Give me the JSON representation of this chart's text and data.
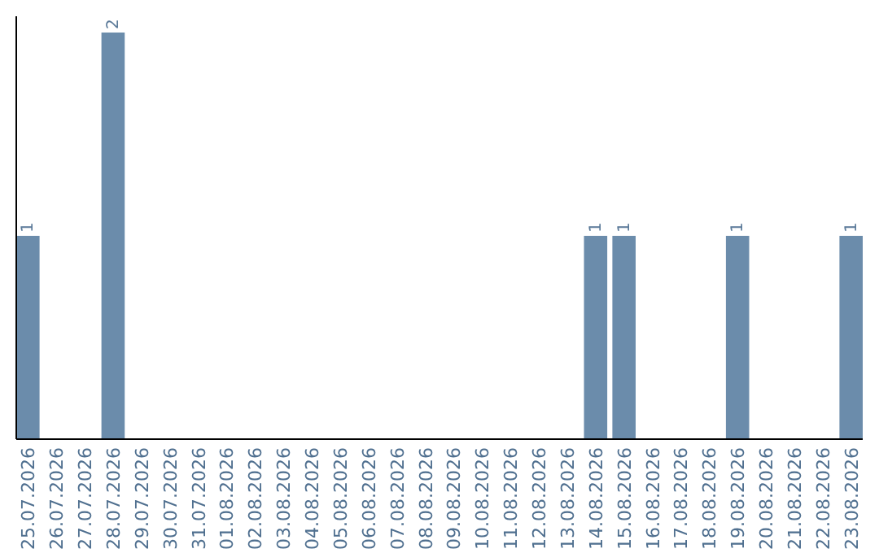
{
  "chart_data": {
    "type": "bar",
    "categories": [
      "25.07.2026",
      "26.07.2026",
      "27.07.2026",
      "28.07.2026",
      "29.07.2026",
      "30.07.2026",
      "31.07.2026",
      "01.08.2026",
      "02.08.2026",
      "03.08.2026",
      "04.08.2026",
      "05.08.2026",
      "06.08.2026",
      "07.08.2026",
      "08.08.2026",
      "09.08.2026",
      "10.08.2026",
      "11.08.2026",
      "12.08.2026",
      "13.08.2026",
      "14.08.2026",
      "15.08.2026",
      "16.08.2026",
      "17.08.2026",
      "18.08.2026",
      "19.08.2026",
      "20.08.2026",
      "21.08.2026",
      "22.08.2026",
      "23.08.2026"
    ],
    "values": [
      1,
      0,
      0,
      2,
      0,
      0,
      0,
      0,
      0,
      0,
      0,
      0,
      0,
      0,
      0,
      0,
      0,
      0,
      0,
      0,
      1,
      1,
      0,
      0,
      0,
      1,
      0,
      0,
      0,
      1
    ],
    "value_labels": [
      "1",
      null,
      null,
      "2",
      null,
      null,
      null,
      null,
      null,
      null,
      null,
      null,
      null,
      null,
      null,
      null,
      null,
      null,
      null,
      null,
      "1",
      "1",
      null,
      null,
      null,
      "1",
      null,
      null,
      null,
      "1"
    ],
    "color": "#6b8cab",
    "ylim": [
      0,
      2.08
    ],
    "tick_labels": "x"
  }
}
